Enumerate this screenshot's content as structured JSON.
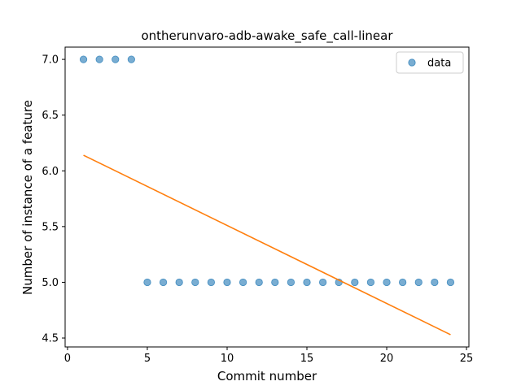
{
  "chart_data": {
    "type": "scatter",
    "title": "ontherunvaro-adb-awake_safe_call-linear",
    "xlabel": "Commit number",
    "ylabel": "Number of instance of a feature",
    "xlim": [
      -0.15,
      25.15
    ],
    "ylim": [
      4.42,
      7.11
    ],
    "x_ticks": [
      0,
      5,
      10,
      15,
      20,
      25
    ],
    "y_ticks": [
      4.5,
      5.0,
      5.5,
      6.0,
      6.5,
      7.0
    ],
    "x_tick_labels": [
      "0",
      "5",
      "10",
      "15",
      "20",
      "25"
    ],
    "y_tick_labels": [
      "4.5",
      "5.0",
      "5.5",
      "6.0",
      "6.5",
      "7.0"
    ],
    "legend": {
      "position": "top-right",
      "entries": [
        "data"
      ]
    },
    "grid": false,
    "series": [
      {
        "name": "data",
        "kind": "scatter",
        "color": "#1f77b4",
        "x": [
          1,
          2,
          3,
          4,
          5,
          6,
          7,
          8,
          9,
          10,
          11,
          12,
          13,
          14,
          15,
          16,
          17,
          18,
          19,
          20,
          21,
          22,
          23,
          24
        ],
        "y": [
          7,
          7,
          7,
          7,
          5,
          5,
          5,
          5,
          5,
          5,
          5,
          5,
          5,
          5,
          5,
          5,
          5,
          5,
          5,
          5,
          5,
          5,
          5,
          5
        ]
      },
      {
        "kind": "line",
        "color": "#ff7f0e",
        "x": [
          1,
          24
        ],
        "y": [
          6.14,
          4.53
        ]
      }
    ]
  }
}
